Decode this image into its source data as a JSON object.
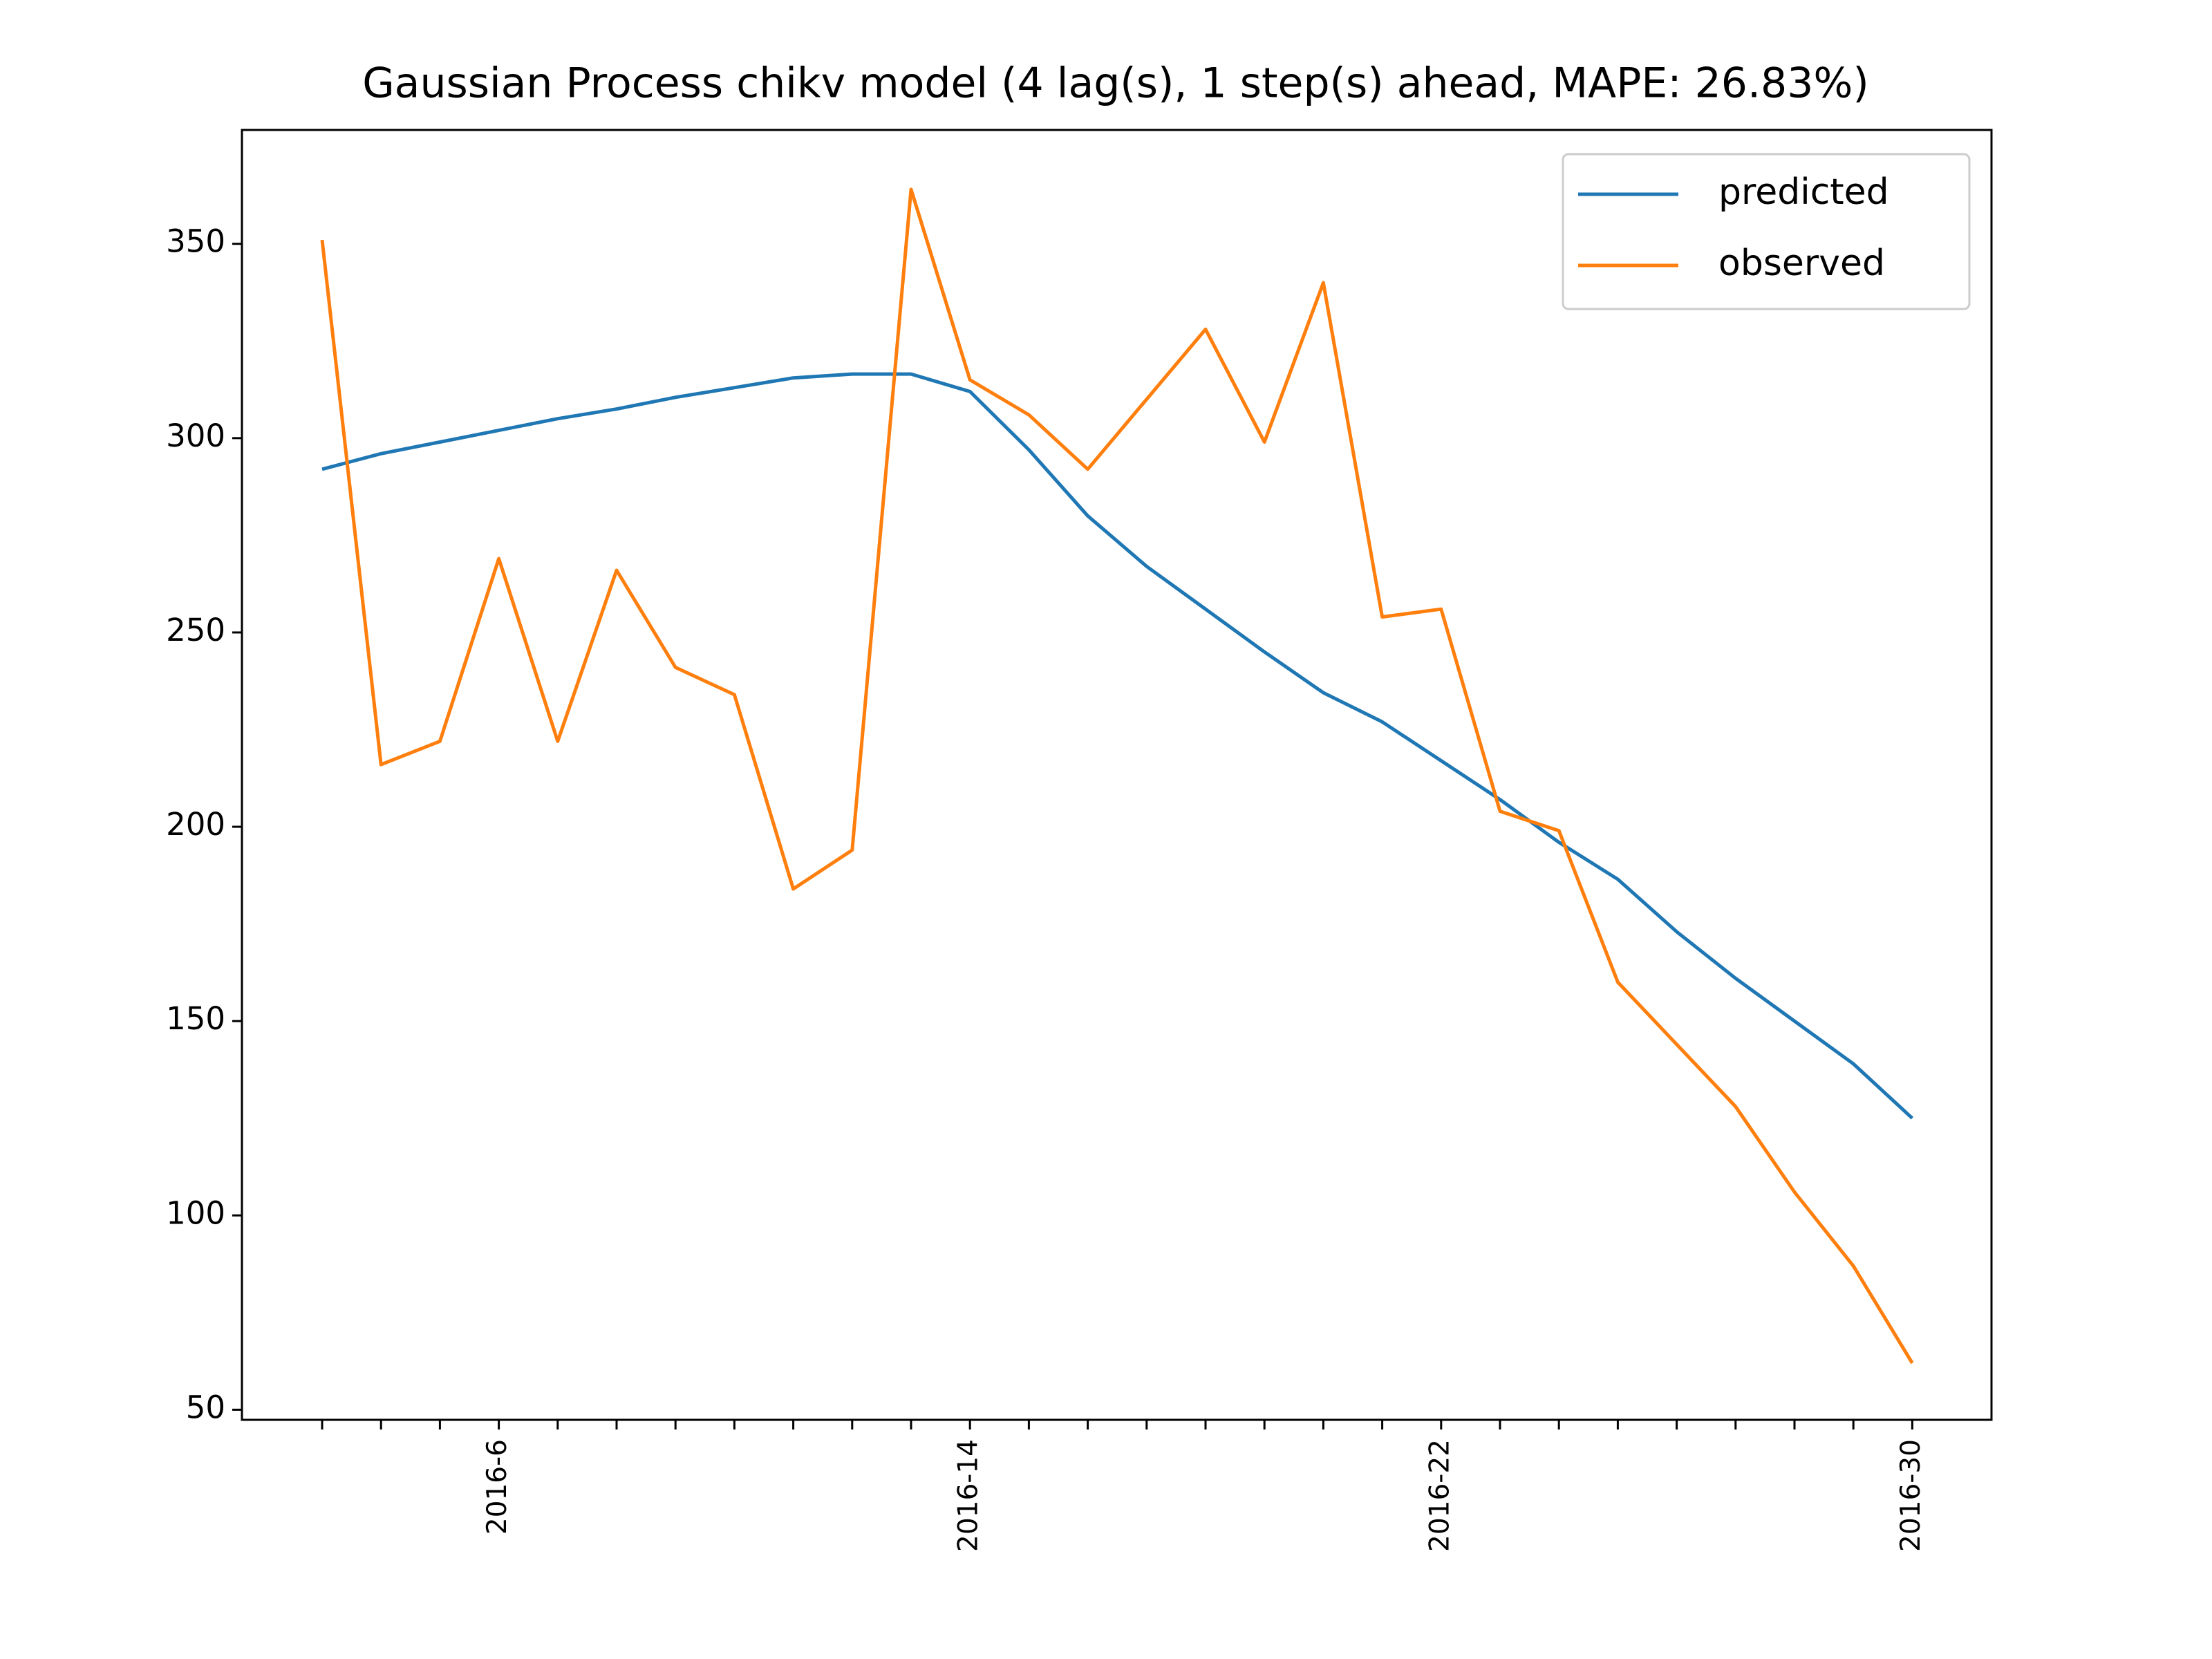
{
  "chart_data": {
    "type": "line",
    "title": "Gaussian Process chikv model (4 lag(s), 1 step(s) ahead, MAPE: 26.83%)",
    "categories": [
      null,
      null,
      null,
      "2016-6",
      null,
      null,
      null,
      null,
      null,
      null,
      null,
      "2016-14",
      null,
      null,
      null,
      null,
      null,
      null,
      null,
      "2016-22",
      null,
      null,
      null,
      null,
      null,
      null,
      null,
      "2016-30"
    ],
    "series": [
      {
        "name": "predicted",
        "color": "#1f77b4",
        "values": [
          292,
          296,
          299,
          302,
          305,
          307.5,
          310.5,
          313,
          315.5,
          316.5,
          316.5,
          312,
          297,
          280,
          267,
          256,
          245,
          234.5,
          227,
          217,
          207,
          196,
          186.5,
          173,
          161,
          150,
          139,
          125
        ]
      },
      {
        "name": "observed",
        "color": "#ff7f0e",
        "values": [
          351,
          216,
          222,
          269,
          222,
          266,
          241,
          234,
          184,
          194,
          364,
          315,
          306,
          292,
          310,
          328,
          299,
          340,
          254,
          256,
          204,
          199,
          160,
          144,
          128,
          106,
          87,
          62
        ]
      }
    ],
    "ylim": [
      47.4,
      379.3
    ],
    "yticks": [
      50,
      100,
      150,
      200,
      250,
      300,
      350
    ],
    "legend": "upper right"
  }
}
